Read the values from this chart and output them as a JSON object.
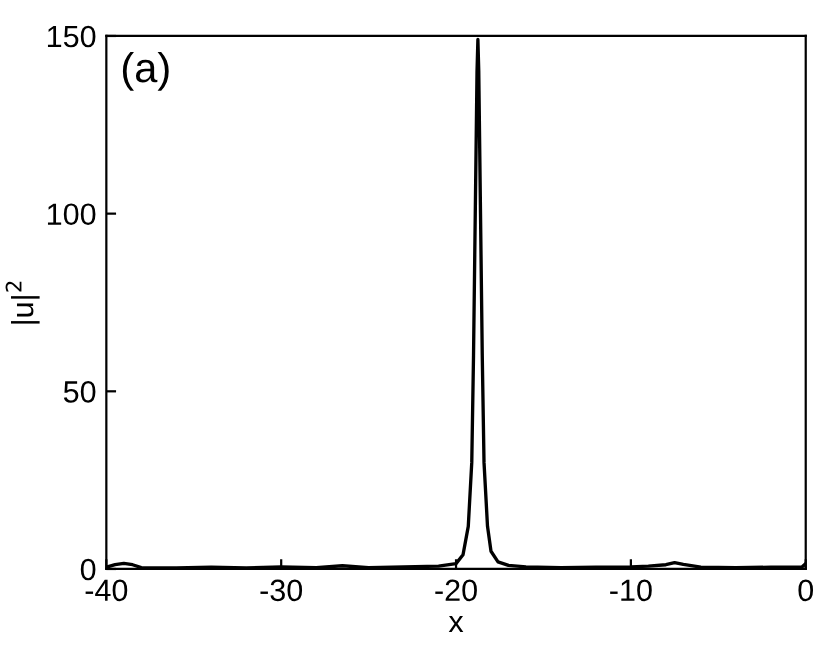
{
  "chart_data": {
    "type": "line",
    "xlabel": "x",
    "ylabel": "|u|$^{2}$",
    "annotations": [
      "(a)"
    ],
    "series": [
      {
        "color": "#000000",
        "x": [
          -40,
          -39.5,
          -39,
          -38.5,
          -38,
          -36,
          -34,
          -32,
          -30,
          -28,
          -26.5,
          -25,
          -23,
          -21,
          -20,
          -19.6,
          -19.3,
          -19.1,
          -19.0,
          -18.9,
          -18.8,
          -18.75,
          -18.7,
          -18.6,
          -18.5,
          -18.4,
          -18.2,
          -18.0,
          -17.6,
          -17,
          -16,
          -14,
          -12,
          -10,
          -9,
          -8,
          -7.5,
          -7,
          -6,
          -4,
          -2,
          -0.2,
          0
        ],
        "values": [
          0.5,
          1.2,
          1.6,
          1.2,
          0.4,
          0.3,
          0.5,
          0.3,
          0.6,
          0.4,
          0.9,
          0.4,
          0.6,
          0.8,
          1.5,
          4,
          12,
          30,
          60,
          100,
          140,
          149,
          140,
          100,
          60,
          30,
          12,
          5,
          2,
          1,
          0.6,
          0.4,
          0.5,
          0.6,
          0.8,
          1.2,
          1.8,
          1.3,
          0.5,
          0.4,
          0.5,
          0.6,
          1.5
        ]
      }
    ],
    "xlim": [
      -40,
      0
    ],
    "ylim": [
      0,
      150
    ],
    "xticks": [
      -40,
      -30,
      -20,
      -10,
      0
    ],
    "yticks": [
      0,
      50,
      100,
      150
    ],
    "grid": false
  }
}
